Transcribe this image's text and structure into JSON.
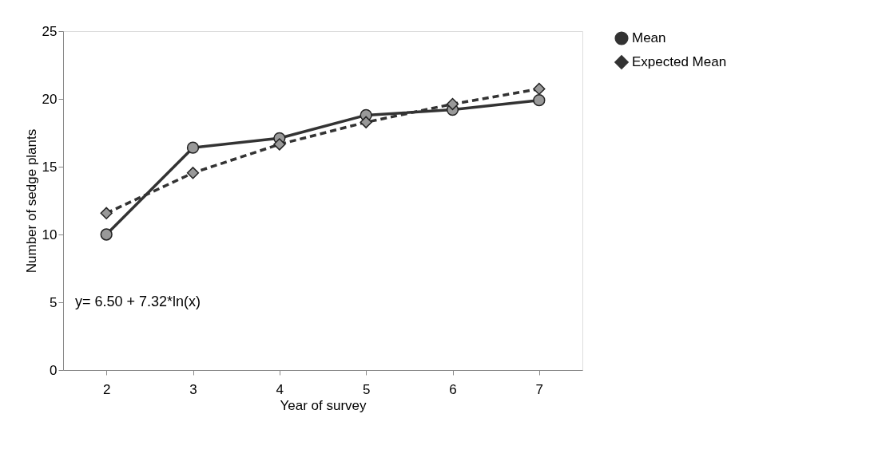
{
  "chart_data": {
    "type": "line",
    "xlabel": "Year of survey",
    "ylabel": "Number of sedge plants",
    "categories": [
      "2",
      "3",
      "4",
      "5",
      "6",
      "7"
    ],
    "series": [
      {
        "name": "Mean",
        "color": "#333333",
        "marker": "circle",
        "line_style": "solid",
        "values": [
          10.0,
          16.4,
          17.1,
          18.8,
          19.2,
          19.9
        ]
      },
      {
        "name": "Expected Mean",
        "color": "#333333",
        "marker": "diamond",
        "line_style": "dashed",
        "values": [
          11.57,
          14.54,
          16.65,
          18.28,
          19.62,
          20.74
        ]
      }
    ],
    "ylim": [
      0,
      25
    ],
    "yticks": [
      0,
      5,
      10,
      15,
      20,
      25
    ],
    "grid": false,
    "legend": "right",
    "annotations": [
      "y= 6.50 + 7.32*ln(x)"
    ]
  }
}
